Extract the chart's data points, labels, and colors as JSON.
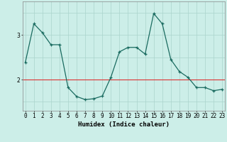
{
  "xlabel": "Humidex (Indice chaleur)",
  "background_color": "#cceee8",
  "grid_color": "#aad4cc",
  "line_color": "#1a6b60",
  "x_values": [
    0,
    1,
    2,
    3,
    4,
    5,
    6,
    7,
    8,
    9,
    10,
    11,
    12,
    13,
    14,
    15,
    16,
    17,
    18,
    19,
    20,
    21,
    22,
    23
  ],
  "y_values": [
    2.38,
    3.25,
    3.05,
    2.78,
    2.78,
    1.82,
    1.62,
    1.55,
    1.57,
    1.63,
    2.05,
    2.62,
    2.72,
    2.72,
    2.57,
    3.48,
    3.25,
    2.45,
    2.18,
    2.05,
    1.82,
    1.82,
    1.75,
    1.78
  ],
  "yticks": [
    2,
    3
  ],
  "ylim": [
    1.3,
    3.75
  ],
  "xlim": [
    -0.3,
    23.3
  ],
  "red_line_y": 2.0,
  "tick_fontsize": 5.5,
  "xlabel_fontsize": 6.5,
  "xlabel_fontweight": "bold"
}
